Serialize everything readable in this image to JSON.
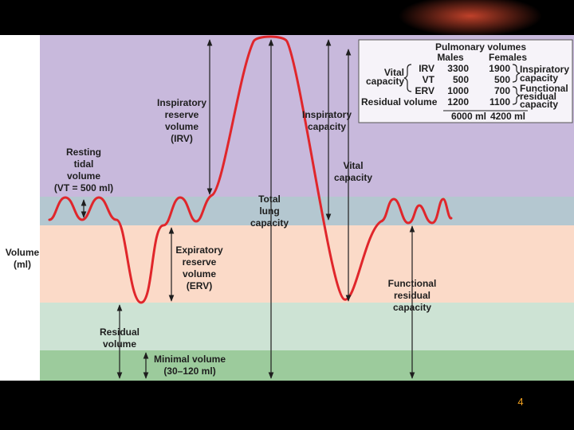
{
  "axis_label": [
    "Volume",
    "(ml)"
  ],
  "labels": {
    "resting_tidal_volume": [
      "Resting",
      "tidal",
      "volume",
      "(VT = 500 ml)"
    ],
    "inspiratory_reserve_volume": [
      "Inspiratory",
      "reserve",
      "volume",
      "(IRV)"
    ],
    "expiratory_reserve_volume": [
      "Expiratory",
      "reserve",
      "volume",
      "(ERV)"
    ],
    "residual_volume": [
      "Residual",
      "volume"
    ],
    "minimal_volume": [
      "Minimal volume",
      "(30–120 ml)"
    ],
    "total_lung_capacity": [
      "Total",
      "lung",
      "capacity"
    ],
    "inspiratory_capacity": [
      "Inspiratory",
      "capacity"
    ],
    "vital_capacity": [
      "Vital",
      "capacity"
    ],
    "functional_residual_capacity": [
      "Functional",
      "residual",
      "capacity"
    ]
  },
  "table": {
    "title": "Pulmonary volumes",
    "columns": [
      "Males",
      "Females"
    ],
    "rows": [
      {
        "label": "IRV",
        "values": [
          "3300",
          "1900"
        ]
      },
      {
        "label": "VT",
        "values": [
          "500",
          "500"
        ]
      },
      {
        "label": "ERV",
        "values": [
          "1000",
          "700"
        ]
      },
      {
        "label": "Residual volume",
        "values": [
          "1200",
          "1100"
        ]
      }
    ],
    "totals": [
      "6000 ml",
      "4200 ml"
    ],
    "groups": {
      "vital_capacity": [
        "Vital",
        "capacity"
      ],
      "inspiratory_capacity": [
        "Inspiratory",
        "capacity"
      ],
      "functional_residual_capacity": [
        "Functional",
        "residual",
        "capacity"
      ]
    }
  },
  "page_number": "4"
}
